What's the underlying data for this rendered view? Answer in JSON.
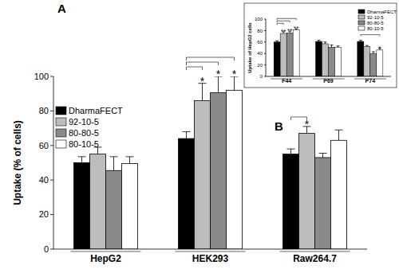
{
  "chart_data": [
    {
      "type": "bar",
      "annotations": [
        "A",
        "B"
      ],
      "y_label": "Uptake (% of cells)",
      "categories": [
        "HepG2",
        "HEK293",
        "Raw264.7"
      ],
      "series": [
        {
          "name": "DharmaFECT",
          "color": "#000000",
          "values": [
            50,
            64,
            55
          ],
          "errors": [
            3.5,
            4,
            3
          ]
        },
        {
          "name": "92-10-5",
          "color": "#bdbdbd",
          "values": [
            55,
            86,
            67
          ],
          "errors": [
            4,
            10,
            4
          ]
        },
        {
          "name": "80-80-5",
          "color": "#8a8a8a",
          "values": [
            45.5,
            90.5,
            53
          ],
          "errors": [
            8,
            9.5,
            2.5
          ]
        },
        {
          "name": "80-10-5",
          "color": "#ffffff",
          "values": [
            49.5,
            92,
            63
          ],
          "errors": [
            4,
            8,
            6
          ]
        }
      ],
      "ylim": [
        0,
        100
      ],
      "yticks": [
        0,
        20,
        40,
        60,
        80,
        100
      ],
      "grid": false,
      "legend": "upper left",
      "significance": [
        {
          "category": "HEK293",
          "series": "92-10-5",
          "label": "*"
        },
        {
          "category": "HEK293",
          "series": "80-80-5",
          "label": "*"
        },
        {
          "category": "HEK293",
          "series": "80-10-5",
          "label": "*"
        },
        {
          "category": "Raw264.7",
          "series": "92-10-5",
          "label": "*"
        }
      ]
    },
    {
      "type": "bar",
      "y_label": "Uptake of HepG2 cells",
      "categories": [
        "F44",
        "P69",
        "P74"
      ],
      "series": [
        {
          "name": "DharmaFECT",
          "color": "#000000",
          "values": [
            60,
            61,
            61
          ],
          "errors": [
            2,
            2,
            2
          ]
        },
        {
          "name": "92-10-5",
          "color": "#bdbdbd",
          "values": [
            75,
            57,
            52
          ],
          "errors": [
            3,
            3,
            2
          ]
        },
        {
          "name": "80-80-5",
          "color": "#8a8a8a",
          "values": [
            76,
            51,
            40
          ],
          "errors": [
            3,
            4,
            3
          ]
        },
        {
          "name": "80-10-5",
          "color": "#ffffff",
          "values": [
            81,
            51,
            46
          ],
          "errors": [
            2,
            2,
            3
          ]
        }
      ],
      "ylim": [
        0,
        100
      ],
      "yticks": [
        0,
        20,
        40,
        60,
        80,
        100
      ],
      "grid": false,
      "legend": "upper right",
      "significance": [
        {
          "category": "F44",
          "series": "92-10-5",
          "label": "**"
        },
        {
          "category": "F44",
          "series": "80-80-5",
          "label": "**"
        },
        {
          "category": "F44",
          "series": "80-10-5",
          "label": "**"
        },
        {
          "category": "P74",
          "series": "80-10-5",
          "label": "*"
        }
      ]
    }
  ]
}
